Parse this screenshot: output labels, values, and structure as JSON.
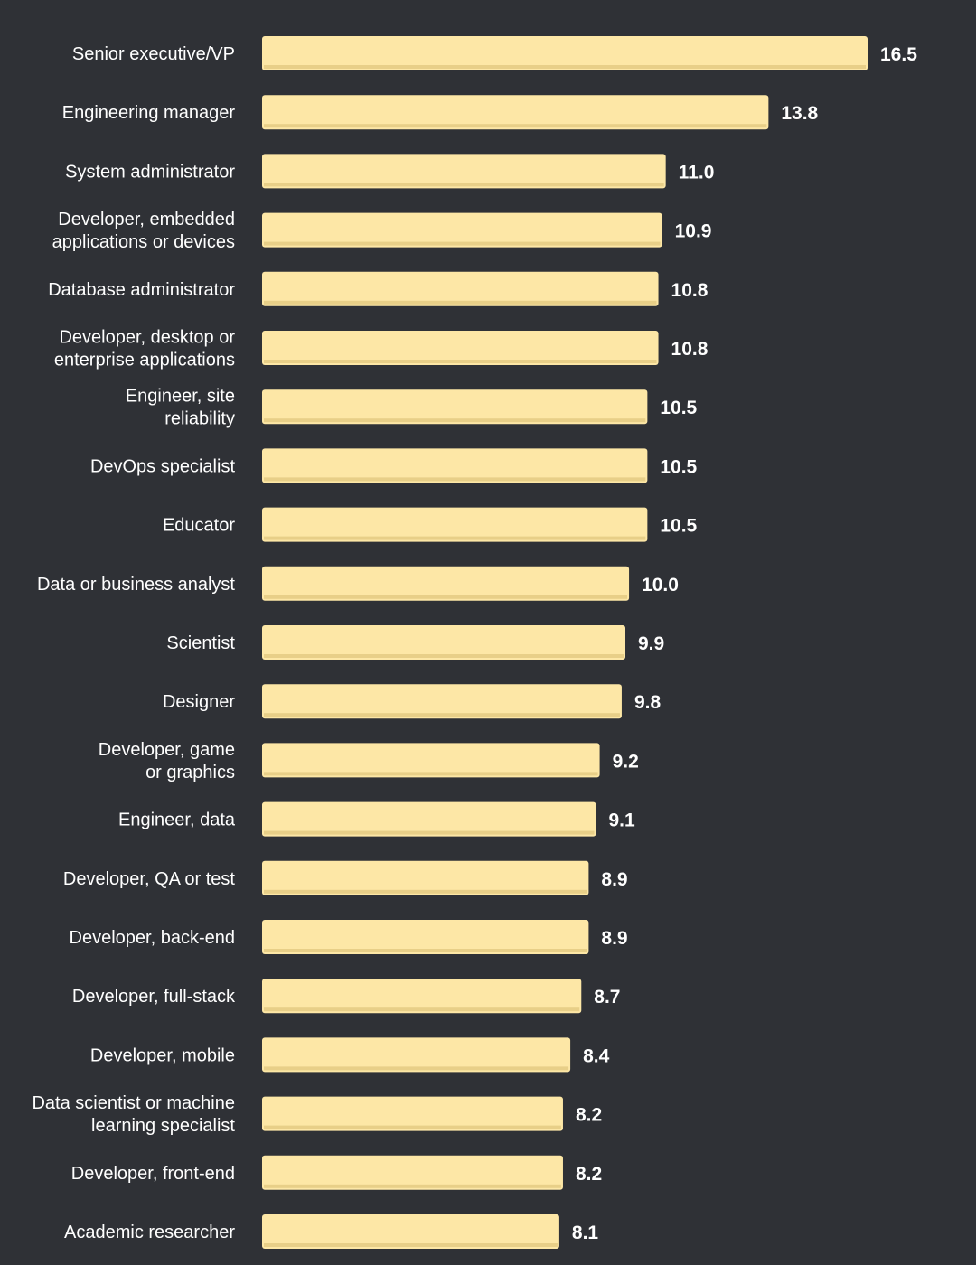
{
  "colors": {
    "background": "#2f3136",
    "bar": "#fde7a6",
    "bar_shadow": "#e8cf88",
    "text": "#ffffff"
  },
  "chart_data": {
    "type": "bar",
    "orientation": "horizontal",
    "title": "",
    "xlabel": "",
    "ylabel": "",
    "xlim": [
      0,
      16.5
    ],
    "grid": false,
    "legend": "none",
    "categories": [
      "Senior executive/VP",
      "Engineering manager",
      "System administrator",
      "Developer, embedded applications or devices",
      "Database administrator",
      "Developer, desktop or enterprise applications",
      "Engineer, site reliability",
      "DevOps specialist",
      "Educator",
      "Data or business analyst",
      "Scientist",
      "Designer",
      "Developer, game or graphics",
      "Engineer, data",
      "Developer, QA or test",
      "Developer, back-end",
      "Developer, full-stack",
      "Developer, mobile",
      "Data scientist or machine learning specialist",
      "Developer, front-end",
      "Academic researcher"
    ],
    "values": [
      16.5,
      13.8,
      11.0,
      10.9,
      10.8,
      10.8,
      10.5,
      10.5,
      10.5,
      10.0,
      9.9,
      9.8,
      9.2,
      9.1,
      8.9,
      8.9,
      8.7,
      8.4,
      8.2,
      8.2,
      8.1
    ],
    "value_labels": [
      "16.5",
      "13.8",
      "11.0",
      "10.9",
      "10.8",
      "10.8",
      "10.5",
      "10.5",
      "10.5",
      "10.0",
      "9.9",
      "9.8",
      "9.2",
      "9.1",
      "8.9",
      "8.9",
      "8.7",
      "8.4",
      "8.2",
      "8.2",
      "8.1"
    ]
  }
}
